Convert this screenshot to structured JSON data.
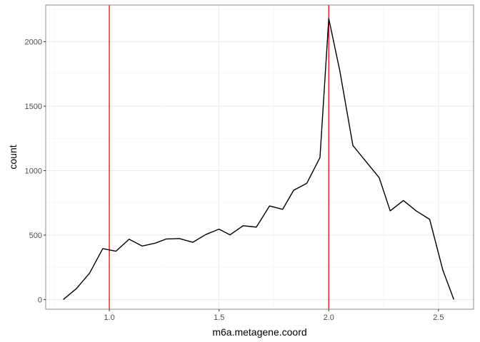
{
  "chart_data": {
    "type": "line",
    "title": "",
    "xlabel": "m6a.metagene.coord",
    "ylabel": "count",
    "xlim": [
      0.71,
      2.66
    ],
    "ylim": [
      -75,
      2285
    ],
    "x_ticks": [
      1.0,
      1.5,
      2.0,
      2.5
    ],
    "x_tick_labels": [
      "1.0",
      "1.5",
      "2.0",
      "2.5"
    ],
    "y_ticks": [
      0,
      500,
      1000,
      1500,
      2000
    ],
    "y_tick_labels": [
      "0",
      "500",
      "1000",
      "1500",
      "2000"
    ],
    "grid": true,
    "legend": "none",
    "vlines": [
      {
        "x": 1.0,
        "color": "#e31a1c"
      },
      {
        "x": 2.0,
        "color": "#e31a1c"
      }
    ],
    "series": [
      {
        "color": "#000000",
        "x": [
          0.79,
          0.85,
          0.91,
          0.97,
          1.03,
          1.09,
          1.15,
          1.21,
          1.26,
          1.32,
          1.38,
          1.44,
          1.5,
          1.55,
          1.61,
          1.67,
          1.73,
          1.79,
          1.84,
          1.9,
          1.96,
          2.0,
          2.05,
          2.11,
          2.17,
          2.23,
          2.28,
          2.34,
          2.4,
          2.46,
          2.52,
          2.57
        ],
        "y": [
          0,
          85,
          205,
          395,
          375,
          468,
          415,
          438,
          470,
          473,
          444,
          505,
          546,
          502,
          573,
          562,
          726,
          700,
          848,
          902,
          1102,
          2180,
          1778,
          1195,
          1070,
          945,
          688,
          768,
          686,
          622,
          228,
          0
        ]
      }
    ]
  },
  "colors": {
    "panel_border": "#8c8c8c",
    "grid_major": "#ebebeb",
    "grid_minor": "#f5f5f5",
    "tick_label": "#4d4d4d",
    "line": "#000000",
    "vline": "#e31a1c"
  }
}
